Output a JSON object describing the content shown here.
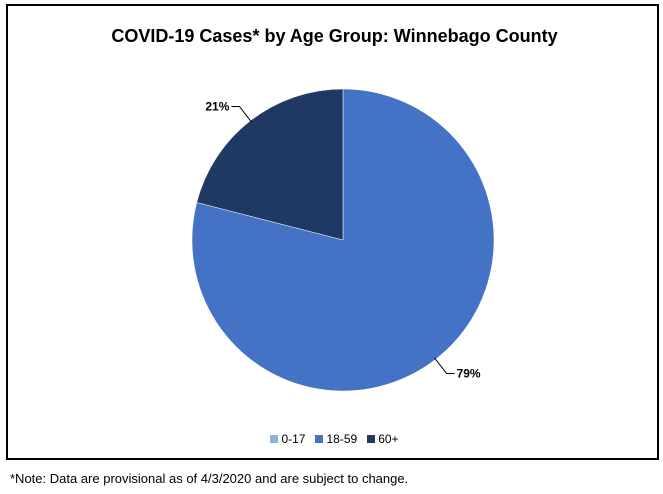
{
  "chart_data": {
    "type": "pie",
    "title": "COVID-19 Cases* by Age Group: Winnebago County",
    "categories": [
      "0-17",
      "18-59",
      "60+"
    ],
    "values": [
      0,
      79,
      21
    ],
    "data_labels": [
      "",
      "79%",
      "21%"
    ],
    "colors": [
      "#8fb0de",
      "#4472c4",
      "#203864"
    ],
    "legend_position": "bottom"
  },
  "legend": [
    {
      "label": "0-17",
      "color": "#8fb0de"
    },
    {
      "label": "18-59",
      "color": "#4472c4"
    },
    {
      "label": "60+",
      "color": "#203864"
    }
  ],
  "note": "*Note: Data are provisional as of 4/3/2020 and are subject to change."
}
